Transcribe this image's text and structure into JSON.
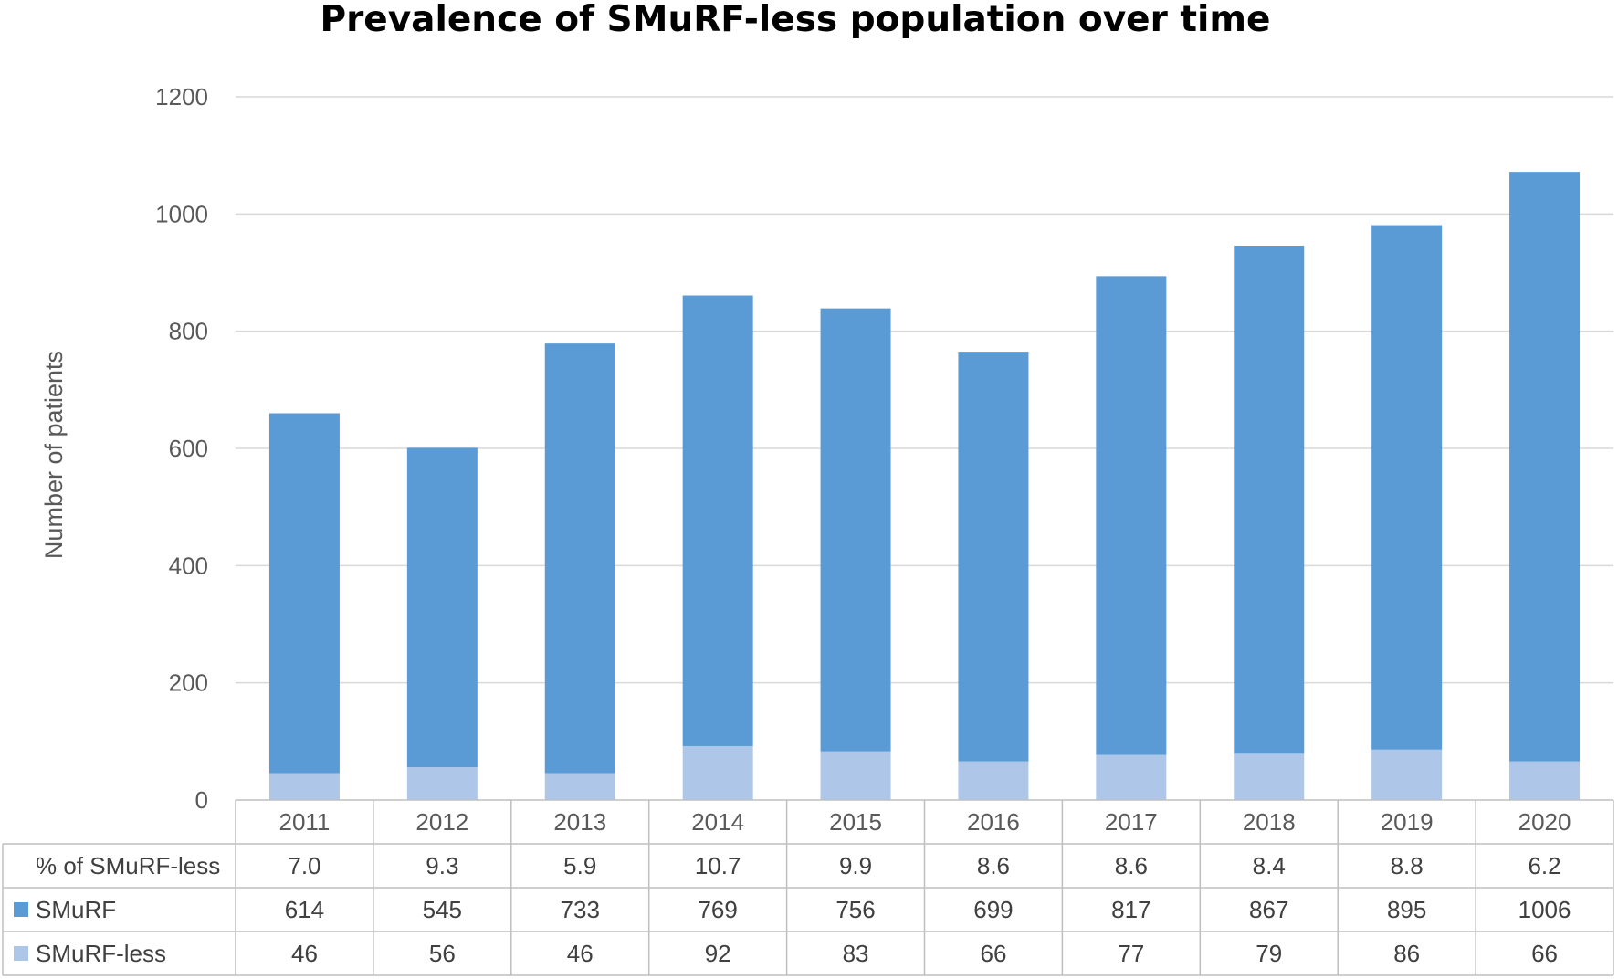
{
  "chart_data": {
    "type": "bar",
    "stacked": true,
    "title": "Prevalence of SMuRF-less population over time",
    "xlabel": "",
    "ylabel": "Number of patients",
    "ylim": [
      0,
      1200
    ],
    "yticks": [
      0,
      200,
      400,
      600,
      800,
      1000,
      1200
    ],
    "categories": [
      "2011",
      "2012",
      "2013",
      "2014",
      "2015",
      "2016",
      "2017",
      "2018",
      "2019",
      "2020"
    ],
    "series": [
      {
        "name": "SMuRF-less",
        "color": "#aec7e8",
        "values": [
          46,
          56,
          46,
          92,
          83,
          66,
          77,
          79,
          86,
          66
        ]
      },
      {
        "name": "SMuRF",
        "color": "#5b9bd5",
        "values": [
          614,
          545,
          733,
          769,
          756,
          699,
          817,
          867,
          895,
          1006
        ]
      }
    ],
    "data_table": {
      "rows": [
        {
          "label": "% of SMuRF-less",
          "key": "",
          "values": [
            "7.0",
            "9.3",
            "5.9",
            "10.7",
            "9.9",
            "8.6",
            "8.6",
            "8.4",
            "8.8",
            "6.2"
          ]
        },
        {
          "label": "SMuRF",
          "key": "#5b9bd5",
          "values": [
            "614",
            "545",
            "733",
            "769",
            "756",
            "699",
            "817",
            "867",
            "895",
            "1006"
          ]
        },
        {
          "label": "SMuRF-less",
          "key": "#aec7e8",
          "values": [
            "46",
            "56",
            "46",
            "92",
            "83",
            "66",
            "77",
            "79",
            "86",
            "66"
          ]
        }
      ]
    }
  }
}
